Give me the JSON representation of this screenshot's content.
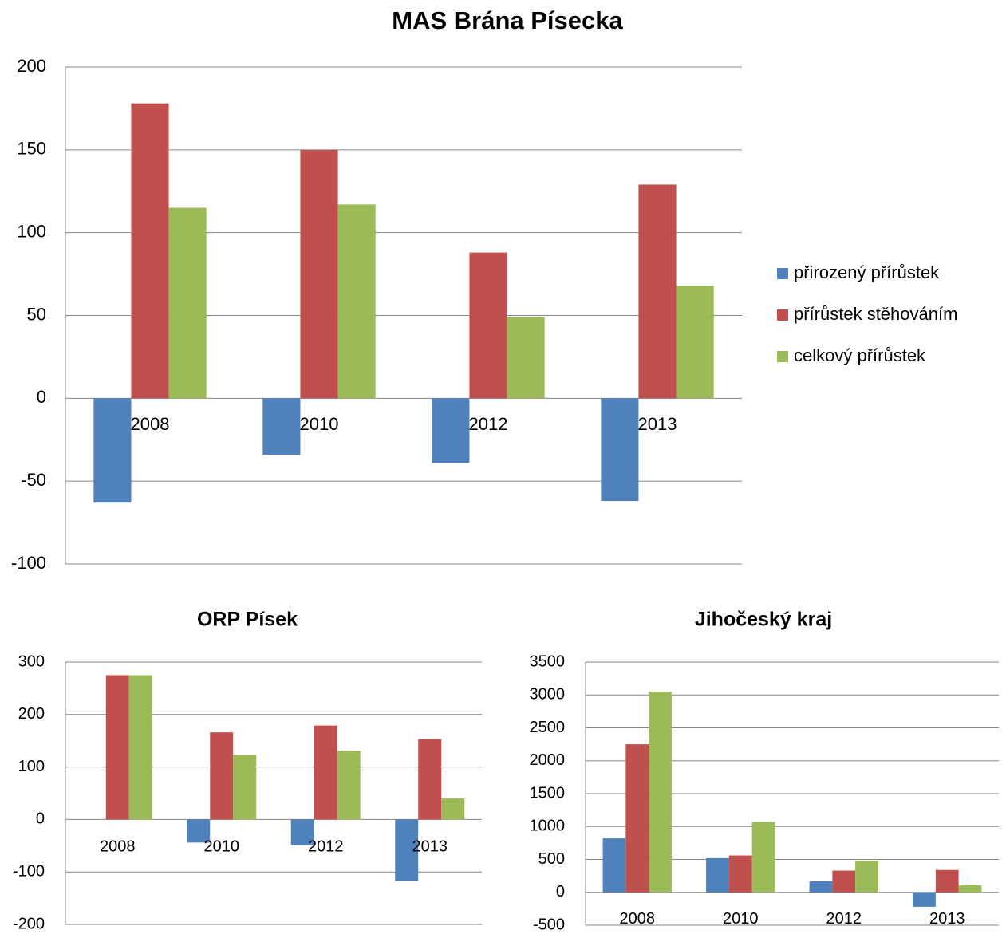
{
  "chart_data": [
    {
      "type": "bar",
      "title": "MAS Brána Písecka",
      "categories": [
        "2008",
        "2010",
        "2012",
        "2013"
      ],
      "series": [
        {
          "name": "přirozený přírůstek",
          "color": "#4f81bd",
          "values": [
            -63,
            -34,
            -39,
            -62
          ]
        },
        {
          "name": "přírůstek stěhováním",
          "color": "#c0504d",
          "values": [
            178,
            150,
            88,
            129
          ]
        },
        {
          "name": "celkový přírůstek",
          "color": "#9bbb59",
          "values": [
            115,
            117,
            49,
            68
          ]
        }
      ],
      "ylim": [
        -100,
        200
      ],
      "yticks": [
        -100,
        -50,
        0,
        50,
        100,
        150,
        200
      ],
      "grid": true,
      "legend": "right"
    },
    {
      "type": "bar",
      "title": "ORP Písek",
      "categories": [
        "2008",
        "2010",
        "2012",
        "2013"
      ],
      "series": [
        {
          "color": "#4f81bd",
          "values": [
            0,
            -44,
            -49,
            -117
          ]
        },
        {
          "color": "#c0504d",
          "values": [
            275,
            166,
            179,
            153
          ]
        },
        {
          "color": "#9bbb59",
          "values": [
            275,
            123,
            131,
            40
          ]
        }
      ],
      "ylim": [
        -200,
        300
      ],
      "yticks": [
        -200,
        -100,
        0,
        100,
        200,
        300
      ],
      "grid": true
    },
    {
      "type": "bar",
      "title": "Jihočeský kraj",
      "categories": [
        "2008",
        "2010",
        "2012",
        "2013"
      ],
      "series": [
        {
          "color": "#4f81bd",
          "values": [
            820,
            520,
            170,
            -220
          ]
        },
        {
          "color": "#c0504d",
          "values": [
            2250,
            560,
            330,
            340
          ]
        },
        {
          "color": "#9bbb59",
          "values": [
            3050,
            1070,
            480,
            110
          ]
        }
      ],
      "ylim": [
        -500,
        3500
      ],
      "yticks": [
        -500,
        0,
        500,
        1000,
        1500,
        2000,
        2500,
        3000,
        3500
      ],
      "grid": true
    }
  ]
}
